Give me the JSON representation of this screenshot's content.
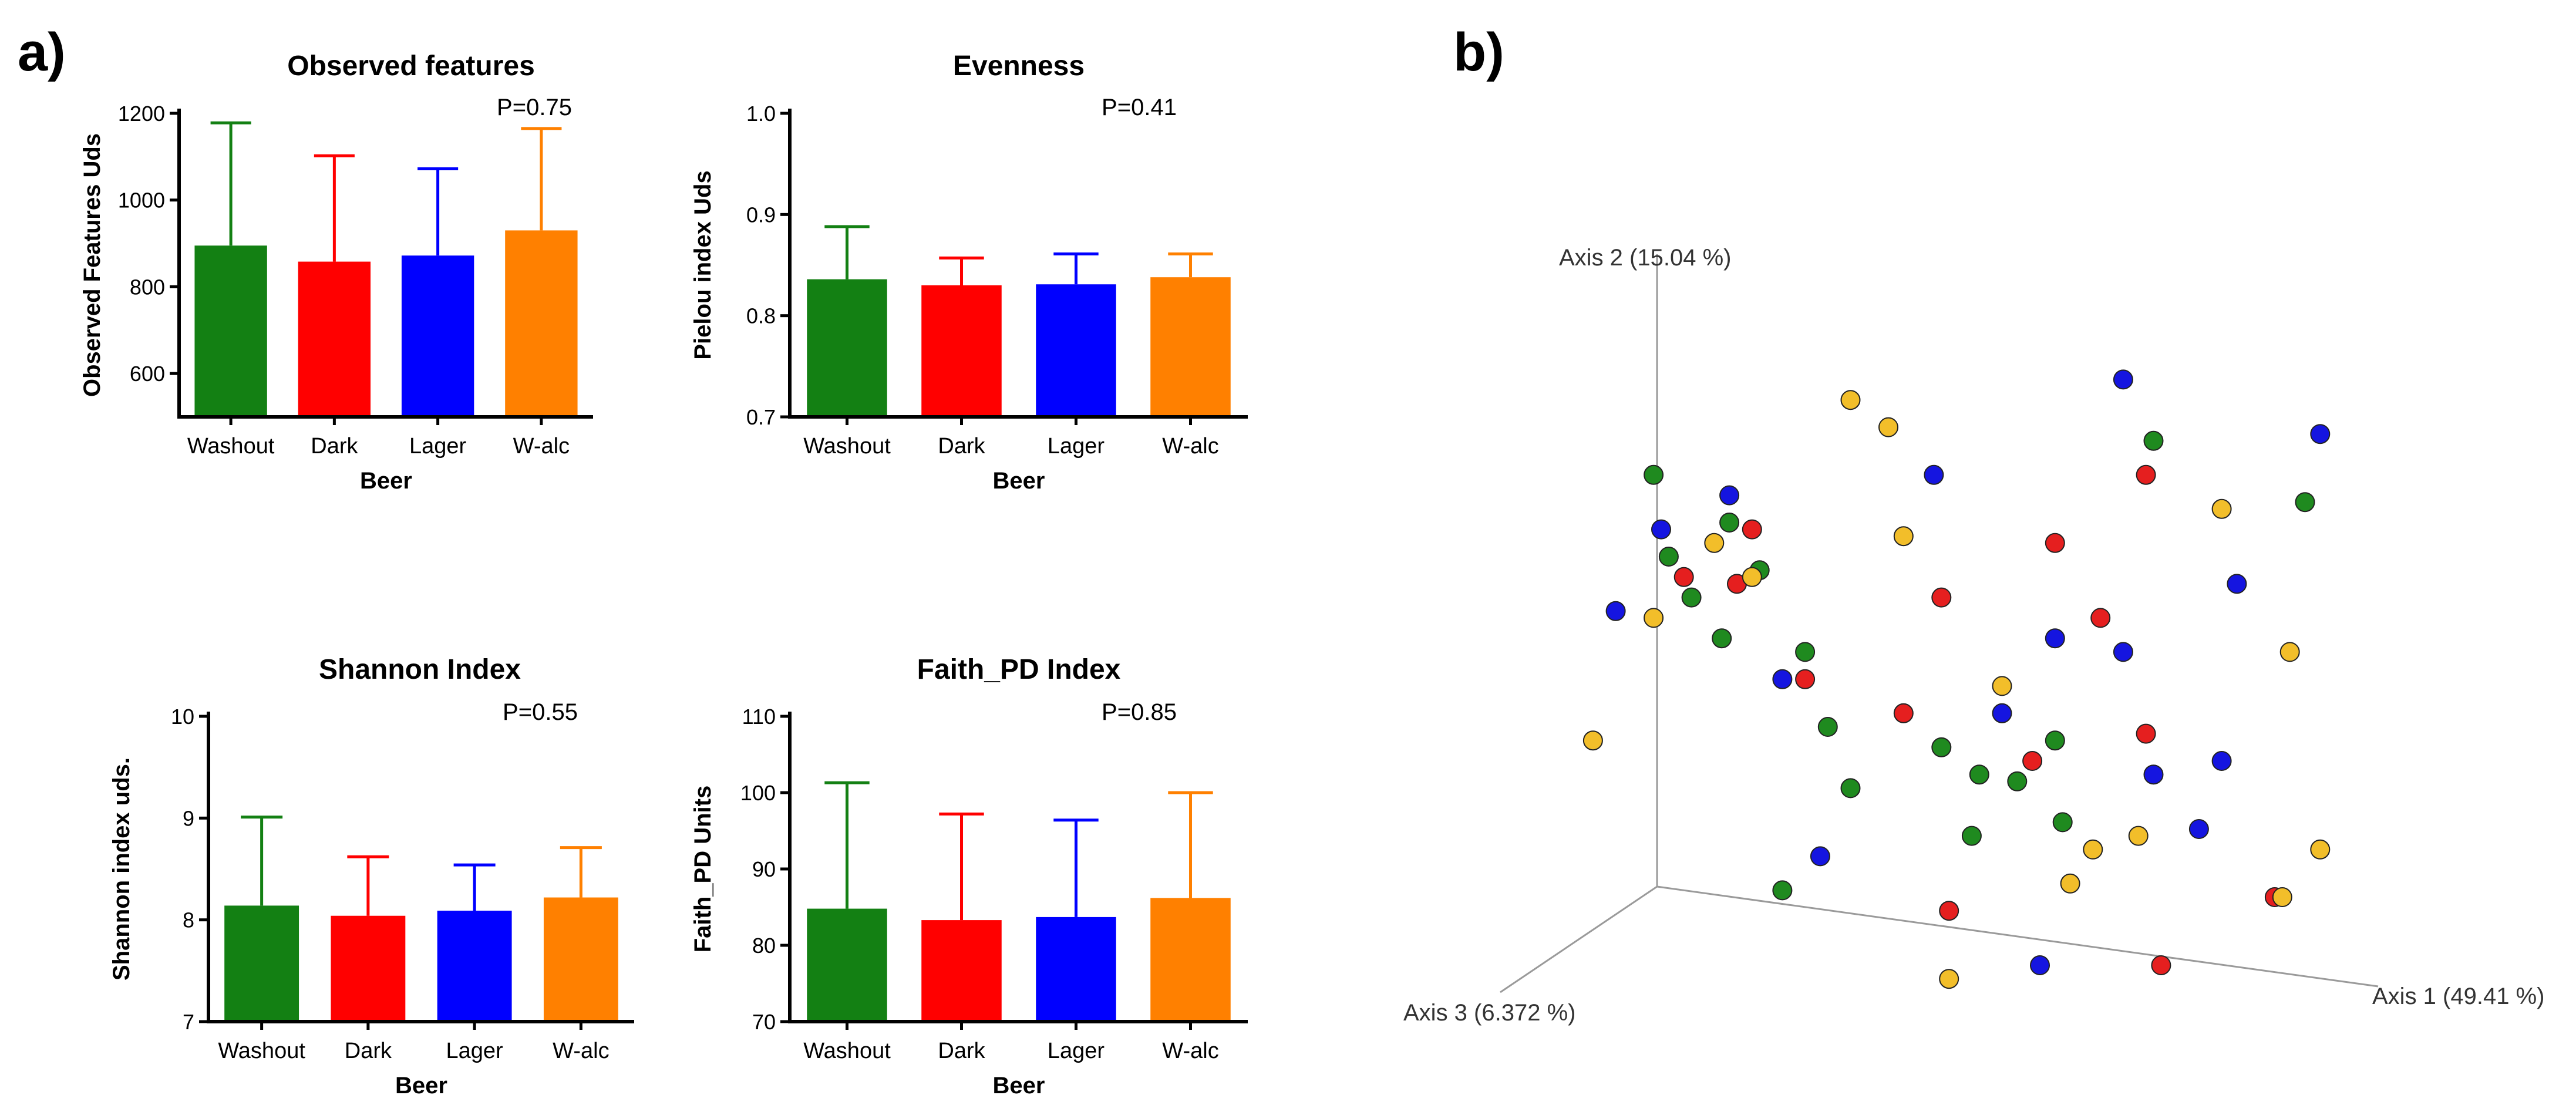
{
  "panel_labels": {
    "a": "a)",
    "b": "b)"
  },
  "colors": {
    "Washout": "#138013",
    "Dark": "#ff0000",
    "Lager": "#0000ff",
    "W-alc": "#ff8000"
  },
  "pcoa_colors": {
    "green": "#1f8a1f",
    "red": "#e51f1f",
    "blue": "#1515e0",
    "yellow": "#f2be2a"
  },
  "chart_data": [
    {
      "id": "observed",
      "type": "bar",
      "title": "Observed features",
      "pvalue": "P=0.75",
      "xlabel": "Beer",
      "ylabel": "Observed Features Uds",
      "categories": [
        "Washout",
        "Dark",
        "Lager",
        "W-alc"
      ],
      "values": [
        895,
        858,
        872,
        930
      ],
      "error_upper": [
        1178,
        1102,
        1072,
        1165
      ],
      "ylim": [
        500,
        1200
      ],
      "yticks": [
        600,
        800,
        1000,
        1200
      ],
      "ytick_labels": [
        "600",
        "800",
        "1000",
        "1200"
      ]
    },
    {
      "id": "evenness",
      "type": "bar",
      "title": "Evenness",
      "pvalue": "P=0.41",
      "xlabel": "Beer",
      "ylabel": "Pielou index Uds",
      "categories": [
        "Washout",
        "Dark",
        "Lager",
        "W-alc"
      ],
      "values": [
        0.836,
        0.83,
        0.831,
        0.838
      ],
      "error_upper": [
        0.888,
        0.857,
        0.861,
        0.861
      ],
      "ylim": [
        0.7,
        1.0
      ],
      "yticks": [
        0.7,
        0.8,
        0.9,
        1.0
      ],
      "ytick_labels": [
        "0.7",
        "0.8",
        "0.9",
        "1.0"
      ]
    },
    {
      "id": "shannon",
      "type": "bar",
      "title": "Shannon Index",
      "pvalue": "P=0.55",
      "xlabel": "Beer",
      "ylabel": "Shannon index uds.",
      "categories": [
        "Washout",
        "Dark",
        "Lager",
        "W-alc"
      ],
      "values": [
        8.14,
        8.04,
        8.09,
        8.22
      ],
      "error_upper": [
        9.01,
        8.62,
        8.54,
        8.71
      ],
      "ylim": [
        7,
        10
      ],
      "yticks": [
        7,
        8,
        9,
        10
      ],
      "ytick_labels": [
        "7",
        "8",
        "9",
        "10"
      ]
    },
    {
      "id": "faith",
      "type": "bar",
      "title": "Faith_PD Index",
      "pvalue": "P=0.85",
      "xlabel": "Beer",
      "ylabel": "Faith_PD Units",
      "categories": [
        "Washout",
        "Dark",
        "Lager",
        "W-alc"
      ],
      "values": [
        84.8,
        83.3,
        83.7,
        86.2
      ],
      "error_upper": [
        101.3,
        97.2,
        96.4,
        100.0
      ],
      "ylim": [
        70,
        110
      ],
      "yticks": [
        70,
        80,
        90,
        100,
        110
      ],
      "ytick_labels": [
        "70",
        "80",
        "90",
        "100",
        "110"
      ]
    },
    {
      "id": "pcoa",
      "type": "scatter",
      "title": "",
      "axes": [
        "Axis 1 (49.41 %)",
        "Axis 2 (15.04 %)",
        "Axis 3 (6.372 %)"
      ],
      "projection": "3d",
      "groups": [
        "green",
        "red",
        "blue",
        "yellow"
      ],
      "points": [
        {
          "x": 0.95,
          "y": 0.78,
          "g": "green"
        },
        {
          "x": 0.51,
          "y": 0.29,
          "g": "green"
        },
        {
          "x": 0.29,
          "y": 0.56,
          "g": "green"
        },
        {
          "x": 0.35,
          "y": 0.36,
          "g": "green"
        },
        {
          "x": 0.32,
          "y": 0.45,
          "g": "green"
        },
        {
          "x": 0.75,
          "y": 0.87,
          "g": "green"
        },
        {
          "x": 0.26,
          "y": 0.21,
          "g": "green"
        },
        {
          "x": 0.62,
          "y": 0.43,
          "g": "green"
        },
        {
          "x": 0.57,
          "y": 0.37,
          "g": "green"
        },
        {
          "x": 0.52,
          "y": 0.38,
          "g": "green"
        },
        {
          "x": 0.18,
          "y": 0.58,
          "g": "green"
        },
        {
          "x": 0.14,
          "y": 0.64,
          "g": "green"
        },
        {
          "x": 0.11,
          "y": 0.7,
          "g": "green"
        },
        {
          "x": 0.47,
          "y": 0.42,
          "g": "green"
        },
        {
          "x": 0.63,
          "y": 0.31,
          "g": "green"
        },
        {
          "x": 0.09,
          "y": 0.82,
          "g": "green"
        },
        {
          "x": 0.23,
          "y": 0.68,
          "g": "green"
        },
        {
          "x": 0.19,
          "y": 0.75,
          "g": "green"
        },
        {
          "x": 0.48,
          "y": 0.18,
          "g": "red"
        },
        {
          "x": 0.22,
          "y": 0.74,
          "g": "red"
        },
        {
          "x": 0.59,
          "y": 0.4,
          "g": "red"
        },
        {
          "x": 0.74,
          "y": 0.82,
          "g": "red"
        },
        {
          "x": 0.74,
          "y": 0.44,
          "g": "red"
        },
        {
          "x": 0.29,
          "y": 0.52,
          "g": "red"
        },
        {
          "x": 0.47,
          "y": 0.64,
          "g": "red"
        },
        {
          "x": 0.42,
          "y": 0.47,
          "g": "red"
        },
        {
          "x": 0.68,
          "y": 0.61,
          "g": "red"
        },
        {
          "x": 0.91,
          "y": 0.2,
          "g": "red"
        },
        {
          "x": 0.2,
          "y": 0.66,
          "g": "red"
        },
        {
          "x": 0.76,
          "y": 0.1,
          "g": "red"
        },
        {
          "x": 0.13,
          "y": 0.67,
          "g": "red"
        },
        {
          "x": 0.62,
          "y": 0.72,
          "g": "red"
        },
        {
          "x": 0.1,
          "y": 0.74,
          "g": "blue"
        },
        {
          "x": 0.6,
          "y": 0.1,
          "g": "blue"
        },
        {
          "x": 0.71,
          "y": 0.56,
          "g": "blue"
        },
        {
          "x": 0.75,
          "y": 0.38,
          "g": "blue"
        },
        {
          "x": 0.31,
          "y": 0.26,
          "g": "blue"
        },
        {
          "x": 0.81,
          "y": 0.3,
          "g": "blue"
        },
        {
          "x": 0.04,
          "y": 0.62,
          "g": "blue"
        },
        {
          "x": 0.46,
          "y": 0.82,
          "g": "blue"
        },
        {
          "x": 0.71,
          "y": 0.96,
          "g": "blue"
        },
        {
          "x": 0.26,
          "y": 0.52,
          "g": "blue"
        },
        {
          "x": 0.86,
          "y": 0.66,
          "g": "blue"
        },
        {
          "x": 0.84,
          "y": 0.4,
          "g": "blue"
        },
        {
          "x": 0.19,
          "y": 0.79,
          "g": "blue"
        },
        {
          "x": 0.62,
          "y": 0.58,
          "g": "blue"
        },
        {
          "x": 0.97,
          "y": 0.88,
          "g": "blue"
        },
        {
          "x": 0.55,
          "y": 0.47,
          "g": "blue"
        },
        {
          "x": 0.4,
          "y": 0.89,
          "g": "yellow"
        },
        {
          "x": 0.22,
          "y": 0.67,
          "g": "yellow"
        },
        {
          "x": 0.35,
          "y": 0.93,
          "g": "yellow"
        },
        {
          "x": 0.67,
          "y": 0.27,
          "g": "yellow"
        },
        {
          "x": 0.17,
          "y": 0.72,
          "g": "yellow"
        },
        {
          "x": 0.84,
          "y": 0.77,
          "g": "yellow"
        },
        {
          "x": 0.93,
          "y": 0.56,
          "g": "yellow"
        },
        {
          "x": 0.73,
          "y": 0.29,
          "g": "yellow"
        },
        {
          "x": 0.01,
          "y": 0.43,
          "g": "yellow"
        },
        {
          "x": 0.48,
          "y": 0.08,
          "g": "yellow"
        },
        {
          "x": 0.64,
          "y": 0.22,
          "g": "yellow"
        },
        {
          "x": 0.97,
          "y": 0.27,
          "g": "yellow"
        },
        {
          "x": 0.55,
          "y": 0.51,
          "g": "yellow"
        },
        {
          "x": 0.92,
          "y": 0.2,
          "g": "yellow"
        },
        {
          "x": 0.42,
          "y": 0.73,
          "g": "yellow"
        },
        {
          "x": 0.09,
          "y": 0.61,
          "g": "yellow"
        }
      ]
    }
  ]
}
